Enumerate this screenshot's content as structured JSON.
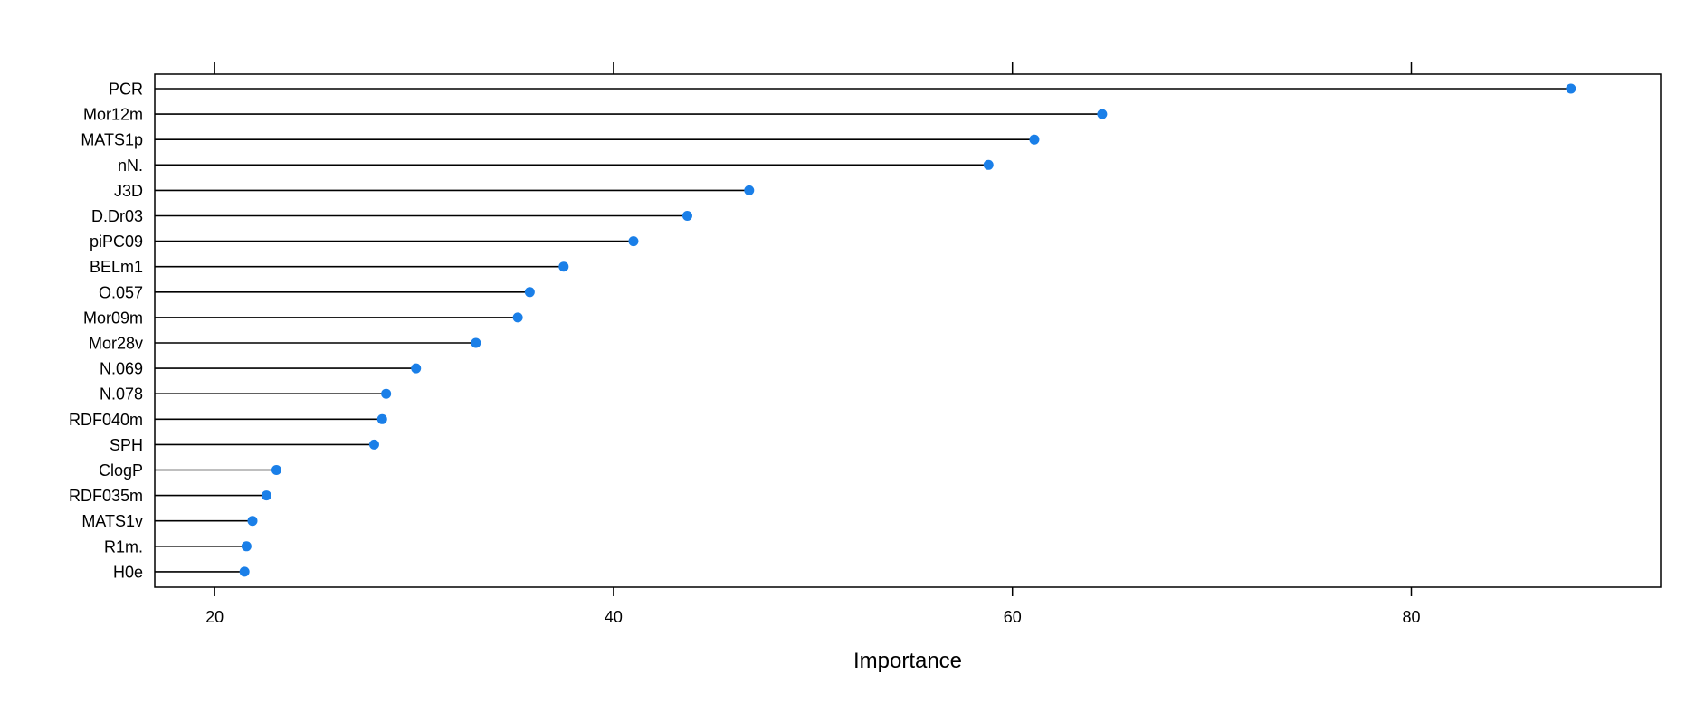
{
  "chart_data": {
    "type": "lollipop",
    "xlabel": "Importance",
    "ylabel": "",
    "xlim": [
      17,
      92.5
    ],
    "xticks": [
      20,
      40,
      60,
      80
    ],
    "grid": false,
    "colors": {
      "point": "#1a7fe8",
      "stem": "#000000",
      "frame": "#000000"
    },
    "categories": [
      "PCR",
      "Mor12m",
      "MATS1p",
      "nN.",
      "J3D",
      "D.Dr03",
      "piPC09",
      "BELm1",
      "O.057",
      "Mor09m",
      "Mor28v",
      "N.069",
      "N.078",
      "RDF040m",
      "SPH",
      "ClogP",
      "RDF035m",
      "MATS1v",
      "R1m.",
      "H0e"
    ],
    "values": [
      88.0,
      64.5,
      61.1,
      58.8,
      46.8,
      43.7,
      41.0,
      37.5,
      35.8,
      35.2,
      33.1,
      30.1,
      28.6,
      28.4,
      28.0,
      23.1,
      22.6,
      21.9,
      21.6,
      21.5
    ]
  }
}
